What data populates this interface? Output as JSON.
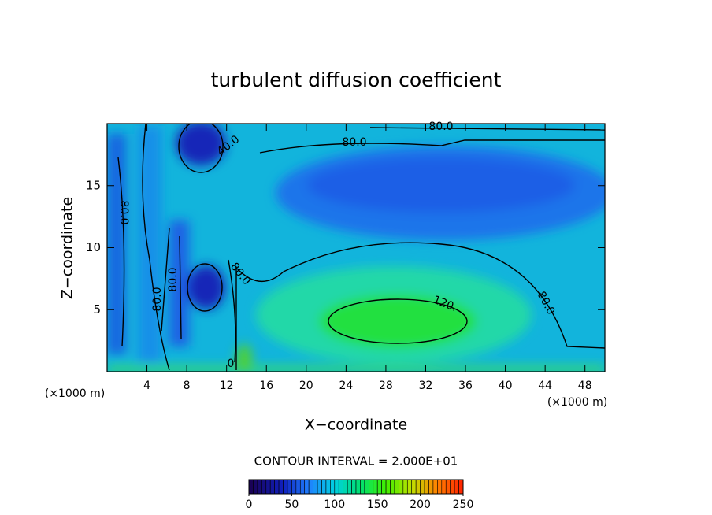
{
  "chart_data": {
    "type": "contour",
    "title": "turbulent diffusion coefficient",
    "x_label": "X−coordinate",
    "y_label": "Z−coordinate",
    "x_unit_label": "(×1000 m)",
    "y_unit_label": "(×1000 m)",
    "xlim": [
      0,
      50
    ],
    "xticks": [
      4,
      8,
      12,
      16,
      20,
      24,
      28,
      32,
      36,
      40,
      44,
      48
    ],
    "ylim": [
      0,
      20
    ],
    "yticks": [
      5,
      10,
      15
    ],
    "contour_interval_label": "CONTOUR INTERVAL = 2.000E+01",
    "contour_labels": [
      {
        "value": 80,
        "label": "80.0"
      },
      {
        "value": 80,
        "label": "80.0"
      },
      {
        "value": 40,
        "label": "40.0"
      },
      {
        "value": 80,
        "label": "80.0"
      },
      {
        "value": 80,
        "label": "80.0"
      },
      {
        "value": 80,
        "label": "80.0"
      },
      {
        "value": 80,
        "label": "80.0"
      },
      {
        "value": 120,
        "label": "120."
      },
      {
        "value": 80,
        "label": "80.0"
      },
      {
        "value": 0,
        "label": "0"
      }
    ],
    "clim": [
      0,
      250
    ],
    "cticks": [
      0,
      50,
      100,
      150,
      200,
      250
    ]
  }
}
